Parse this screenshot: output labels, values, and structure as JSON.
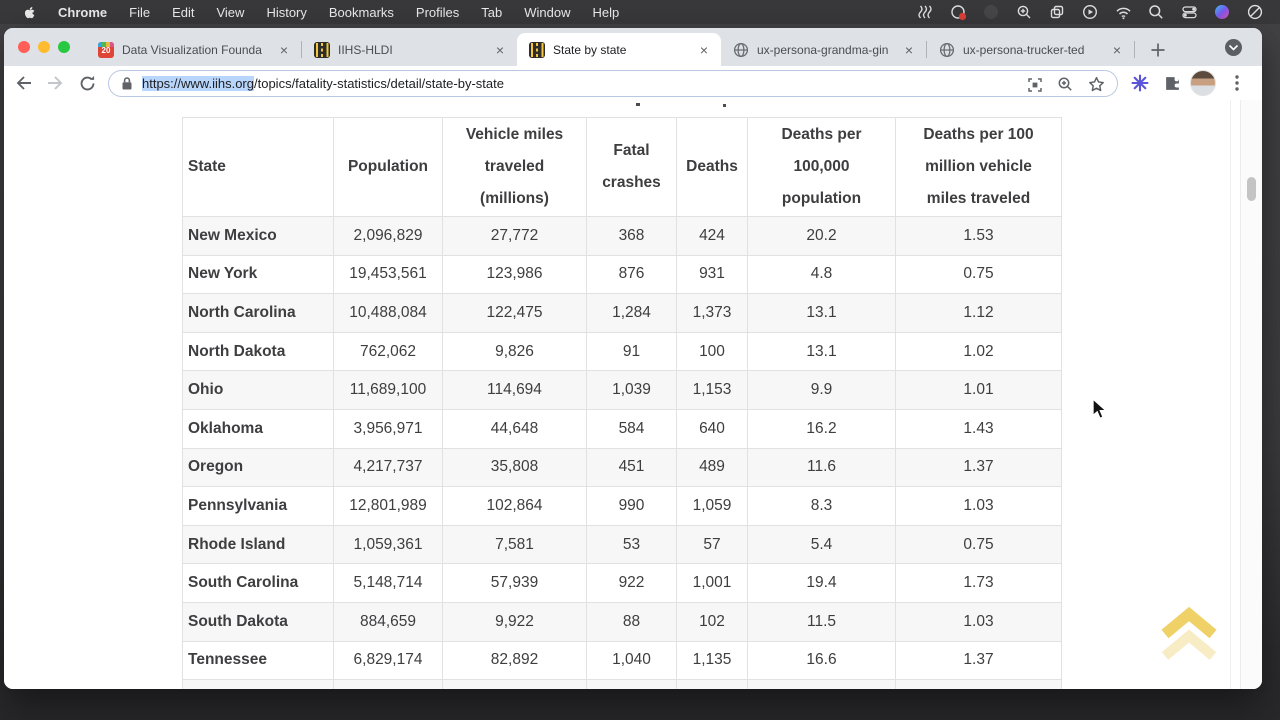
{
  "menu_bar": {
    "apple_icon": "apple-logo",
    "app_name": "Chrome",
    "items": [
      "File",
      "Edit",
      "View",
      "History",
      "Bookmarks",
      "Profiles",
      "Tab",
      "Window",
      "Help"
    ],
    "status_icons": [
      "wave",
      "screen-share-badge",
      "dimmed-app",
      "zoom-app",
      "window-switcher",
      "screen-mirroring",
      "wifi",
      "spotlight",
      "control-center",
      "siri",
      "focus"
    ]
  },
  "window_controls": [
    "close",
    "minimize",
    "zoom"
  ],
  "tabs": [
    {
      "title": "Data Visualization Founda",
      "favicon": "calendar-20",
      "active": false
    },
    {
      "title": "IIHS-HLDI",
      "favicon": "road",
      "active": false
    },
    {
      "title": "State by state",
      "favicon": "road",
      "active": true
    },
    {
      "title": "ux-persona-grandma-gin",
      "favicon": "globe",
      "active": false
    },
    {
      "title": "ux-persona-trucker-ted",
      "favicon": "globe",
      "active": false
    }
  ],
  "tab_controls": {
    "new_tab_icon": "plus",
    "tab_search_icon": "chevron-down-circle",
    "close_icon": "×"
  },
  "toolbar": {
    "nav_icons": [
      "back-arrow",
      "forward-arrow",
      "reload"
    ],
    "omnibox": {
      "lock_icon": "padlock",
      "url_selected": "https://www.iihs.org",
      "url_rest": "/topics/fatality-statistics/detail/state-by-state",
      "right_icons": [
        "qr-code",
        "zoom-in",
        "bookmark-star"
      ]
    },
    "right_icons": [
      "extension-burst",
      "extensions-puzzle",
      "profile-avatar",
      "kebab-menu"
    ]
  },
  "table": {
    "headers": [
      "State",
      "Population",
      "Vehicle miles traveled (millions)",
      "Fatal crashes",
      "Deaths",
      "Deaths per 100,000 population",
      "Deaths per 100 million vehicle miles traveled"
    ],
    "rows": [
      [
        "New Mexico",
        "2,096,829",
        "27,772",
        "368",
        "424",
        "20.2",
        "1.53"
      ],
      [
        "New York",
        "19,453,561",
        "123,986",
        "876",
        "931",
        "4.8",
        "0.75"
      ],
      [
        "North Carolina",
        "10,488,084",
        "122,475",
        "1,284",
        "1,373",
        "13.1",
        "1.12"
      ],
      [
        "North Dakota",
        "762,062",
        "9,826",
        "91",
        "100",
        "13.1",
        "1.02"
      ],
      [
        "Ohio",
        "11,689,100",
        "114,694",
        "1,039",
        "1,153",
        "9.9",
        "1.01"
      ],
      [
        "Oklahoma",
        "3,956,971",
        "44,648",
        "584",
        "640",
        "16.2",
        "1.43"
      ],
      [
        "Oregon",
        "4,217,737",
        "35,808",
        "451",
        "489",
        "11.6",
        "1.37"
      ],
      [
        "Pennsylvania",
        "12,801,989",
        "102,864",
        "990",
        "1,059",
        "8.3",
        "1.03"
      ],
      [
        "Rhode Island",
        "1,059,361",
        "7,581",
        "53",
        "57",
        "5.4",
        "0.75"
      ],
      [
        "South Carolina",
        "5,148,714",
        "57,939",
        "922",
        "1,001",
        "19.4",
        "1.73"
      ],
      [
        "South Dakota",
        "884,659",
        "9,922",
        "88",
        "102",
        "11.5",
        "1.03"
      ],
      [
        "Tennessee",
        "6,829,174",
        "82,892",
        "1,040",
        "1,135",
        "16.6",
        "1.37"
      ]
    ]
  },
  "scroll_to_top": {
    "icon": "double-chevron-up",
    "color": "#efd167"
  },
  "colors": {
    "tab_strip": "#dee1e6",
    "selection": "#b8d6fb",
    "zebra": "#f7f7f7",
    "border": "#e0e1e3",
    "accent_yellow": "#efd167"
  }
}
